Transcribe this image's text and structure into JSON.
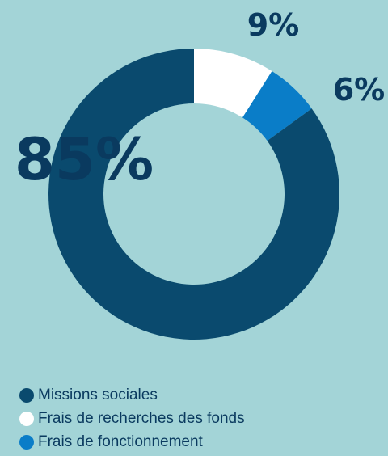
{
  "chart_data": {
    "type": "pie",
    "style": "donut",
    "categories": [
      "Missions sociales",
      "Frais de recherches des fonds",
      "Frais de fonctionnement"
    ],
    "values": [
      85,
      9,
      6
    ],
    "labels": [
      "85%",
      "9%",
      "6%"
    ],
    "colors": [
      "#0a4a6e",
      "#ffffff",
      "#0a7dc8"
    ],
    "legend_position": "bottom-left"
  },
  "theme": {
    "background": "#a3d4d7",
    "text": "#0a3a5f"
  }
}
